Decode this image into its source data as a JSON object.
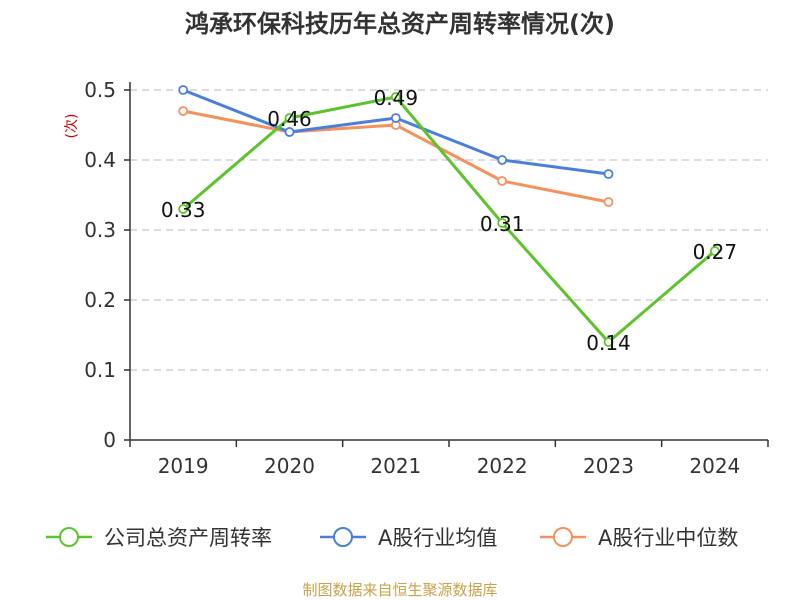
{
  "chart_data": {
    "type": "line",
    "title": "鸿承环保科技历年总资产周转率情况(次)",
    "ylabel": "(次)",
    "xlabel": "",
    "categories": [
      "2019",
      "2020",
      "2021",
      "2022",
      "2023",
      "2024"
    ],
    "ylim": [
      0,
      0.5
    ],
    "yticks": [
      "0",
      "0.1",
      "0.2",
      "0.3",
      "0.4",
      "0.5"
    ],
    "grid": true,
    "legend_position": "bottom",
    "series": [
      {
        "name": "公司总资产周转率",
        "color": "#5cc42a",
        "values": [
          0.33,
          0.46,
          0.49,
          0.31,
          0.14,
          0.27
        ],
        "labels": [
          "0.33",
          "0.46",
          "0.49",
          "0.31",
          "0.14",
          "0.27"
        ]
      },
      {
        "name": "A股行业均值",
        "color": "#4a7fdc",
        "values": [
          0.5,
          0.44,
          0.46,
          0.4,
          0.38,
          null
        ]
      },
      {
        "name": "A股行业中位数",
        "color": "#f4915c",
        "values": [
          0.47,
          0.44,
          0.45,
          0.37,
          0.34,
          null
        ]
      }
    ],
    "source": "制图数据来自恒生聚源数据库"
  }
}
